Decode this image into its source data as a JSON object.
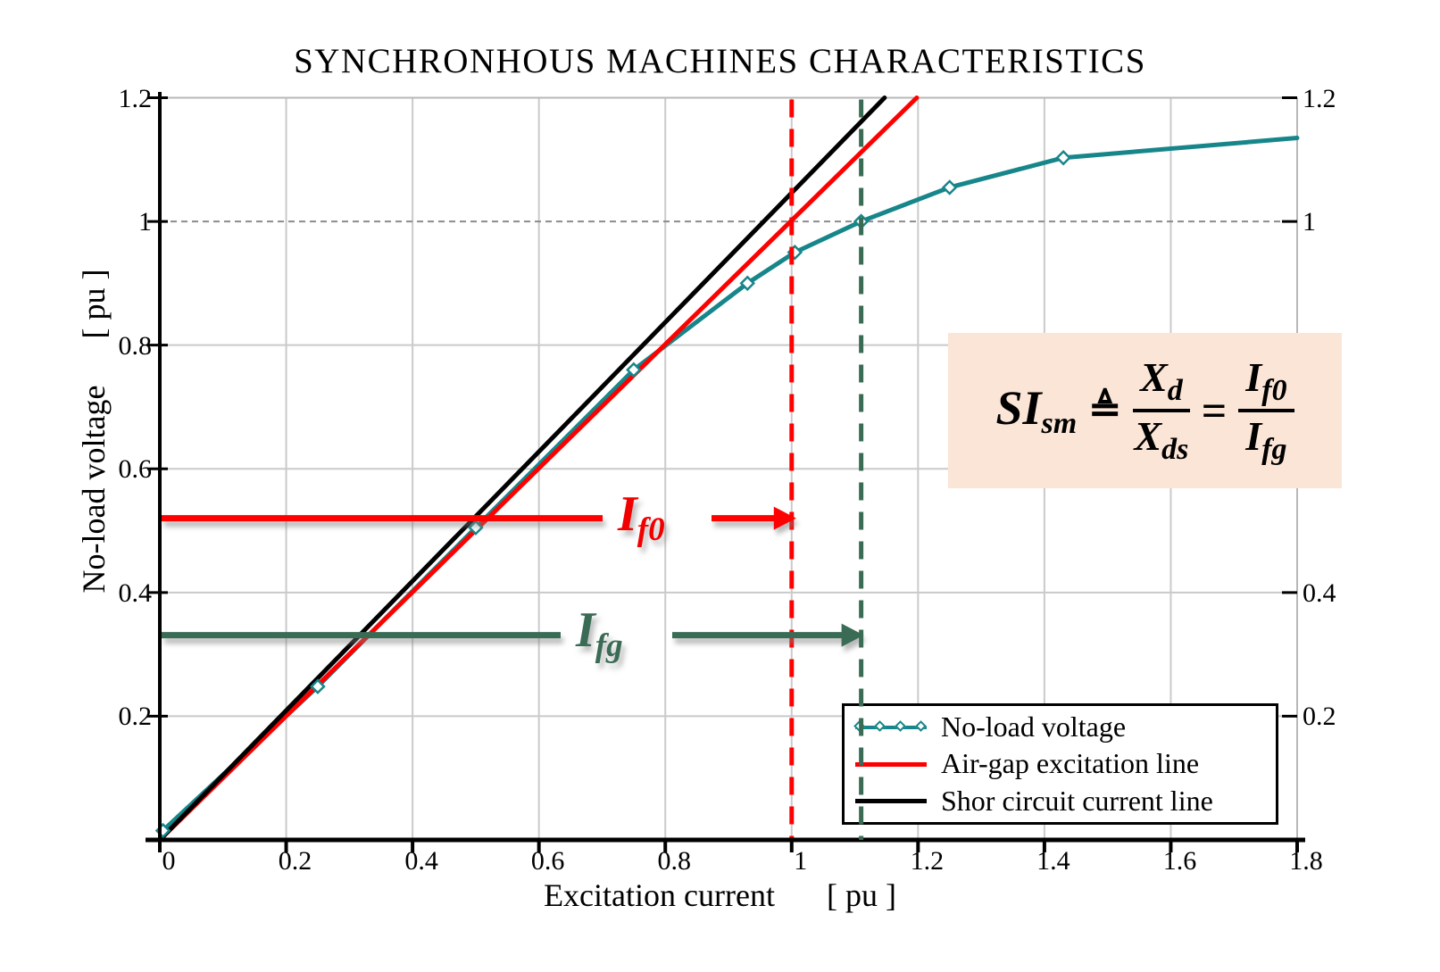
{
  "title": "SYNCHRONHOUS MACHINES CHARACTERISTICS",
  "x_axis": {
    "label": "Excitation current",
    "unit": "[ pu ]",
    "tick_labels": [
      "0",
      "0.2",
      "0.4",
      "0.6",
      "0.8",
      "1",
      "1.2",
      "1.4",
      "1.6",
      "1.8"
    ],
    "tick_values": [
      0,
      0.2,
      0.4,
      0.6,
      0.8,
      1,
      1.2,
      1.4,
      1.6,
      1.8
    ]
  },
  "y_axis": {
    "label": "No-load voltage",
    "unit": "[ pu ]",
    "left_ticks": [
      {
        "value": 0.2,
        "label": "0.2"
      },
      {
        "value": 0.4,
        "label": "0.4"
      },
      {
        "value": 0.6,
        "label": "0.6"
      },
      {
        "value": 0.8,
        "label": "0.8"
      },
      {
        "value": 1.0,
        "label": "1"
      },
      {
        "value": 1.2,
        "label": "1.2"
      }
    ],
    "right_ticks": [
      {
        "value": 1.2,
        "label": "1.2"
      },
      {
        "value": 1.0,
        "label": "1"
      },
      {
        "value": 0.4,
        "label": "0.4"
      },
      {
        "value": 0.2,
        "label": "0.2"
      }
    ]
  },
  "legend": {
    "items": [
      {
        "label": "No-load voltage",
        "color": "#17868A",
        "style": "line-diamond"
      },
      {
        "label": "Air-gap excitation line",
        "color": "#FF0000",
        "style": "line"
      },
      {
        "label": "Shor circuit current line",
        "color": "#000000",
        "style": "line"
      }
    ]
  },
  "formula": {
    "bg": "#FBE5D6",
    "lhs": "SI",
    "lhs_sub": "sm",
    "relation": "≜",
    "frac1_num": "X",
    "frac1_num_sub": "d",
    "frac1_den": "X",
    "frac1_den_sub": "ds",
    "equals": "=",
    "frac2_num": "I",
    "frac2_num_sub": "f0",
    "frac2_den": "I",
    "frac2_den_sub": "fg"
  },
  "annotations": {
    "if0": {
      "main": "I",
      "sub": "f0",
      "color": "#F20000",
      "y": 0.52,
      "arrow_tip_x": 1.0
    },
    "ifg": {
      "main": "I",
      "sub": "fg",
      "color": "#3A6B55",
      "y": 0.331,
      "arrow_tip_x": 1.11
    },
    "vline_red": {
      "x": 1.0,
      "color": "#FF0000"
    },
    "vline_green": {
      "x": 1.11,
      "color": "#3A6B55"
    },
    "hline_dashed_y": 1.0
  },
  "colors": {
    "grid": "#CACACA",
    "frame": "#B8B8B8",
    "dashed_gridline": "#8C8C8C",
    "axis": "#000000",
    "formula_bg": "#FBE5D6"
  },
  "chart_data": {
    "type": "line",
    "title": "SYNCHRONHOUS MACHINES CHARACTERISTICS",
    "xlabel": "Excitation current [ pu ]",
    "ylabel": "No-load voltage [ pu ]",
    "xlim": [
      0,
      1.8
    ],
    "ylim": [
      0,
      1.2
    ],
    "grid": true,
    "legend_position": "lower right",
    "series": [
      {
        "name": "No-load voltage",
        "color": "#17868A",
        "marker": "diamond",
        "width": 5,
        "x": [
          0.005,
          0.25,
          0.5,
          0.75,
          0.93,
          1.005,
          1.11,
          1.25,
          1.43,
          1.8
        ],
        "y": [
          0.015,
          0.248,
          0.505,
          0.76,
          0.9,
          0.95,
          1.0,
          1.055,
          1.103,
          1.135
        ]
      },
      {
        "name": "Air-gap excitation line",
        "color": "#FF0000",
        "marker": "none",
        "width": 5,
        "x": [
          0,
          1.198
        ],
        "y": [
          0,
          1.2
        ]
      },
      {
        "name": "Shor circuit current line",
        "color": "#000000",
        "marker": "none",
        "width": 5,
        "x": [
          0,
          1.147
        ],
        "y": [
          0,
          1.2
        ]
      }
    ]
  }
}
